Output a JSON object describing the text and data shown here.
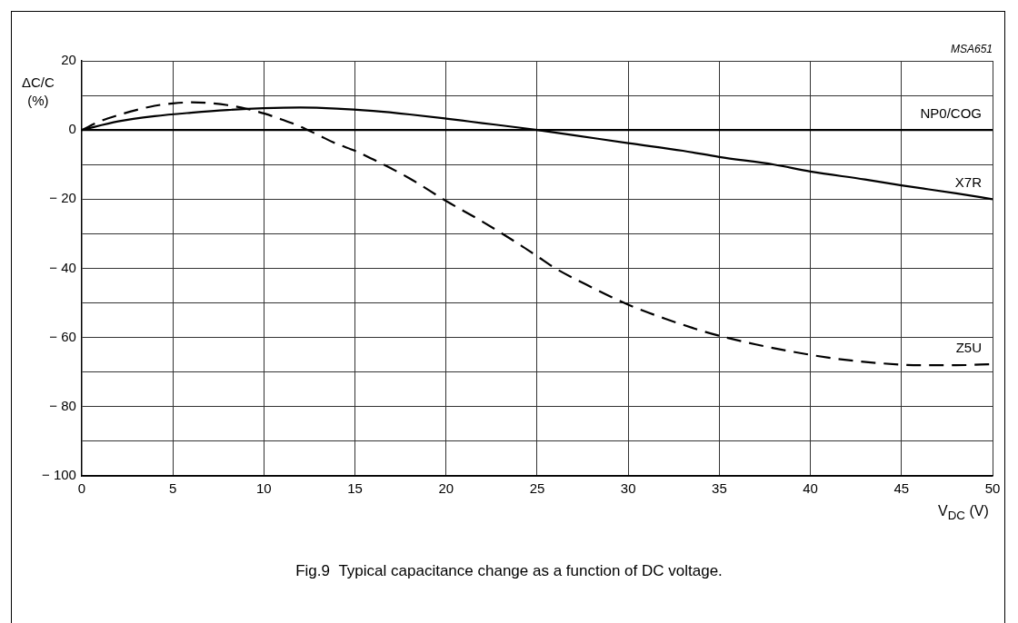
{
  "chart_data": {
    "type": "line",
    "xlabel": "V$_{DC}$ (V)",
    "ylabel": "ΔC/C (%)",
    "annotations": [
      "MSA651",
      "Fig.9  Typical capacitance change as a function of DC voltage."
    ],
    "xlim": [
      0,
      50
    ],
    "xticks": [
      0,
      5,
      10,
      15,
      20,
      25,
      30,
      35,
      40,
      45,
      50
    ],
    "ylim": [
      -100,
      20
    ],
    "yticks": [
      -100,
      {
        "value": -90,
        "label": null
      },
      -80,
      {
        "value": -70,
        "label": null
      },
      -60,
      {
        "value": -50,
        "label": null
      },
      -40,
      {
        "value": -30,
        "label": null
      },
      -20,
      {
        "value": -10,
        "label": null
      },
      0,
      {
        "value": 10,
        "label": null
      },
      20
    ],
    "grid": true,
    "legend": false,
    "marker": "none",
    "series": [
      {
        "name": "NP0/COG",
        "color": "#000000",
        "line_style": "solid",
        "x": [
          0,
          50
        ],
        "values": [
          0,
          0
        ]
      },
      {
        "name": "X7R",
        "color": "#000000",
        "line_style": "solid",
        "x": [
          0,
          2,
          4,
          6,
          8,
          10,
          12,
          14,
          16,
          18,
          20,
          22,
          24,
          25,
          27,
          30,
          33,
          35,
          38,
          40,
          43,
          45,
          48,
          50
        ],
        "values": [
          0,
          2.5,
          4,
          5,
          5.8,
          6.3,
          6.5,
          6.2,
          5.5,
          4.5,
          3.3,
          2,
          0.7,
          0,
          -1.5,
          -3.8,
          -6,
          -7.8,
          -10,
          -12,
          -14.3,
          -16,
          -18.3,
          -20
        ]
      },
      {
        "name": "Z5U",
        "color": "#000000",
        "line_style": "dashed",
        "x": [
          0,
          1,
          2,
          3,
          4,
          5,
          6,
          7,
          8,
          9,
          10,
          11,
          12,
          13,
          14,
          15,
          16,
          18,
          20,
          22,
          24,
          25,
          26,
          28,
          30,
          32,
          34,
          35,
          37,
          40,
          42,
          44,
          46,
          48,
          50
        ],
        "values": [
          0,
          2.5,
          4.3,
          5.8,
          7,
          7.7,
          8,
          7.8,
          7.2,
          6.2,
          4.8,
          3,
          1,
          -1.5,
          -4,
          -6,
          -8.5,
          -14,
          -20.5,
          -26.5,
          -33,
          -36.5,
          -40,
          -45.5,
          -50.5,
          -54.5,
          -58,
          -59.5,
          -62,
          -65,
          -66.5,
          -67.5,
          -68,
          -68,
          -67.7
        ]
      }
    ]
  }
}
